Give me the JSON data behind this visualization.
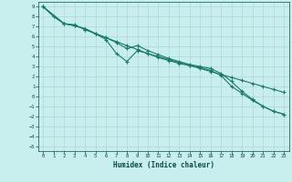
{
  "xlabel": "Humidex (Indice chaleur)",
  "bg_color": "#c8eeee",
  "grid_color": "#b0d8d8",
  "line_color": "#1a7a6a",
  "xmin": -0.5,
  "xmax": 23.5,
  "ymin": -5.5,
  "ymax": 9.5,
  "yticks": [
    9,
    8,
    7,
    6,
    5,
    4,
    3,
    2,
    1,
    0,
    -1,
    -2,
    -3,
    -4,
    -5
  ],
  "xticks": [
    0,
    1,
    2,
    3,
    4,
    5,
    6,
    7,
    8,
    9,
    10,
    11,
    12,
    13,
    14,
    15,
    16,
    17,
    18,
    19,
    20,
    21,
    22,
    23
  ],
  "line1_x": [
    0,
    1,
    2,
    3,
    4,
    5,
    6,
    7,
    8,
    9,
    10,
    11,
    12,
    13,
    14,
    15,
    16,
    17,
    18,
    19,
    20,
    21,
    22,
    23
  ],
  "line1_y": [
    9.0,
    8.0,
    7.3,
    7.2,
    6.7,
    6.3,
    5.9,
    5.5,
    5.1,
    4.7,
    4.3,
    4.0,
    3.7,
    3.4,
    3.1,
    2.8,
    2.5,
    2.2,
    1.9,
    1.6,
    1.3,
    1.0,
    0.7,
    0.4
  ],
  "line2_x": [
    0,
    2,
    3,
    4,
    5,
    6,
    7,
    8,
    9,
    10,
    11,
    12,
    13,
    14,
    15,
    16,
    17,
    18,
    19,
    20,
    21,
    22,
    23
  ],
  "line2_y": [
    9.0,
    7.3,
    7.1,
    6.8,
    6.3,
    5.7,
    4.3,
    3.5,
    4.6,
    4.3,
    3.9,
    3.6,
    3.3,
    3.1,
    2.9,
    2.6,
    2.1,
    1.0,
    0.3,
    -0.4,
    -1.0,
    -1.5,
    -1.8
  ],
  "line3_x": [
    0,
    2,
    3,
    4,
    5,
    6,
    7,
    8,
    9,
    10,
    11,
    12,
    13,
    14,
    15,
    16,
    17,
    18,
    19,
    20,
    21,
    22,
    23
  ],
  "line3_y": [
    9.0,
    7.3,
    7.1,
    6.8,
    6.3,
    5.9,
    5.4,
    4.8,
    5.1,
    4.6,
    4.2,
    3.8,
    3.5,
    3.2,
    3.0,
    2.8,
    2.3,
    1.5,
    0.5,
    -0.3,
    -1.0,
    -1.5,
    -1.8
  ]
}
